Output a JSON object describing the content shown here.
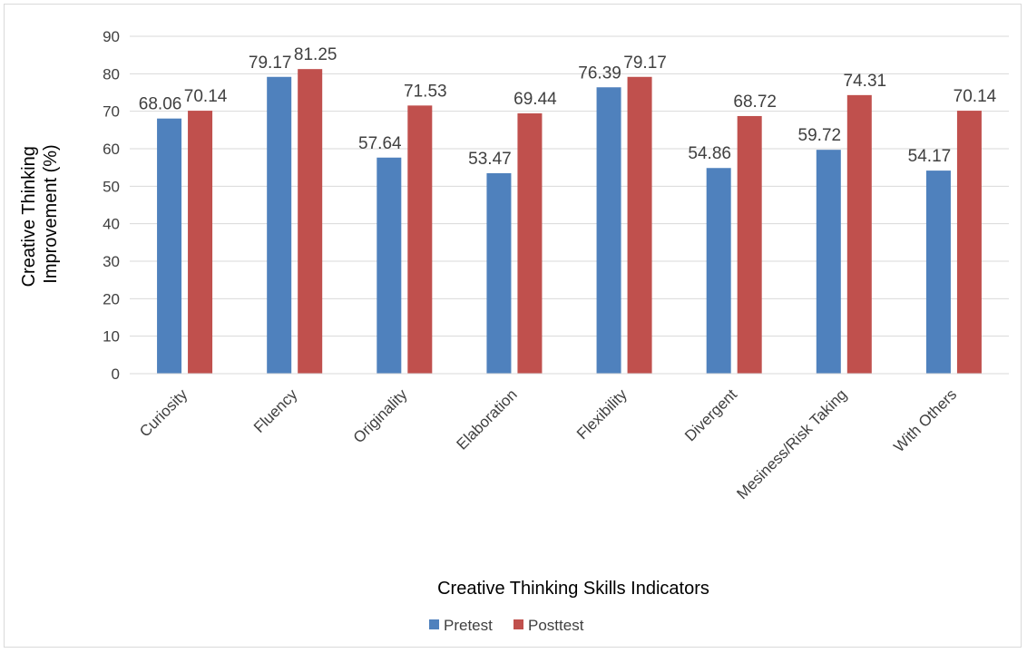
{
  "chart_data": {
    "type": "bar",
    "title": "",
    "xlabel": "Creative Thinking Skills Indicators",
    "ylabel_lines": [
      "Creative Thinking",
      "Improvement (%)"
    ],
    "ylim": [
      0,
      90
    ],
    "yticks": [
      0,
      10,
      20,
      30,
      40,
      50,
      60,
      70,
      80,
      90
    ],
    "grid": true,
    "legend_position": "bottom",
    "categories": [
      "Curiosity",
      "Fluency",
      "Originality",
      "Elaboration",
      "Flexibility",
      "Divergent",
      "Mesiness/Risk Taking",
      "With Others"
    ],
    "series": [
      {
        "name": "Pretest",
        "color": "#4f81bd",
        "values": [
          68.06,
          79.17,
          57.64,
          53.47,
          76.39,
          54.86,
          59.72,
          54.17
        ],
        "labels": [
          "68.06",
          "79.17",
          "57.64",
          "53.47",
          "76.39",
          "54.86",
          "59.72",
          "54.17"
        ]
      },
      {
        "name": "Posttest",
        "color": "#c0504d",
        "values": [
          70.14,
          81.25,
          71.53,
          69.44,
          79.17,
          68.72,
          74.31,
          70.14
        ],
        "labels": [
          "70.14",
          "81.25",
          "71.53",
          "69.44",
          "79.17",
          "68.72",
          "74.31",
          "70.14"
        ]
      }
    ]
  }
}
